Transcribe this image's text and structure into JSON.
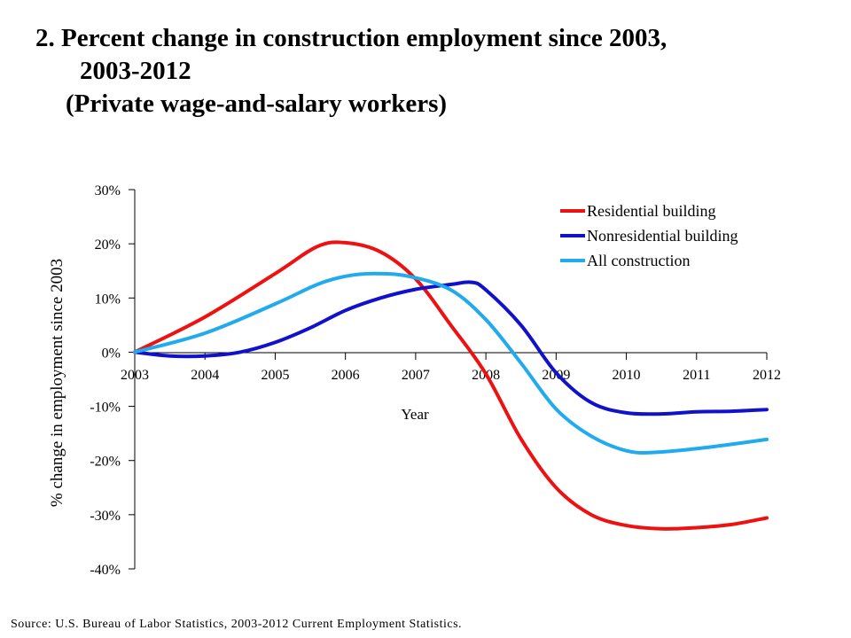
{
  "title": {
    "line1": "2. Percent change in construction employment since 2003,",
    "line2": "2003-2012",
    "subtitle": "(Private wage-and-salary workers)"
  },
  "source": "Source: U.S. Bureau of Labor Statistics, 2003-2012 Current Employment Statistics.",
  "chart_data": {
    "type": "line",
    "title": "2. Percent change in construction employment since 2003, 2003-2012 (Private wage-and-salary workers)",
    "xlabel": "Year",
    "ylabel": "% change in employment since 2003",
    "x": [
      2003,
      2004,
      2005,
      2006,
      2007,
      2008,
      2009,
      2010,
      2011,
      2012
    ],
    "x_ticks": [
      "2003",
      "2004",
      "2005",
      "2006",
      "2007",
      "2008",
      "2009",
      "2010",
      "2011",
      "2012"
    ],
    "y_ticks": [
      "30%",
      "20%",
      "10%",
      "0%",
      "-10%",
      "-20%",
      "-30%",
      "-40%"
    ],
    "y_tick_values": [
      30,
      20,
      10,
      0,
      -10,
      -20,
      -30,
      -40
    ],
    "ylim": [
      -40,
      30
    ],
    "xlim": [
      2003,
      2012
    ],
    "grid": false,
    "legend_position": "top-right",
    "series": [
      {
        "name": "Residential building",
        "color": "#ee1111",
        "points": [
          [
            2003,
            0
          ],
          [
            2004,
            6.5
          ],
          [
            2005,
            14.5
          ],
          [
            2005.6,
            19.5
          ],
          [
            2006,
            20.2
          ],
          [
            2006.5,
            18.5
          ],
          [
            2007,
            13.5
          ],
          [
            2007.5,
            5
          ],
          [
            2008,
            -4
          ],
          [
            2008.5,
            -16
          ],
          [
            2009,
            -25
          ],
          [
            2009.5,
            -30
          ],
          [
            2010,
            -32
          ],
          [
            2010.5,
            -32.6
          ],
          [
            2011,
            -32.4
          ],
          [
            2011.5,
            -31.8
          ],
          [
            2012,
            -30.6
          ]
        ]
      },
      {
        "name": "Nonresidential building",
        "color": "#1111cc",
        "points": [
          [
            2003,
            0
          ],
          [
            2003.5,
            -0.7
          ],
          [
            2004,
            -0.7
          ],
          [
            2004.5,
            0
          ],
          [
            2005,
            1.8
          ],
          [
            2005.5,
            4.5
          ],
          [
            2006,
            7.7
          ],
          [
            2006.5,
            10
          ],
          [
            2007,
            11.6
          ],
          [
            2007.5,
            12.5
          ],
          [
            2007.8,
            12.9
          ],
          [
            2008,
            11.5
          ],
          [
            2008.5,
            5
          ],
          [
            2009,
            -3.8
          ],
          [
            2009.5,
            -9.3
          ],
          [
            2010,
            -11.2
          ],
          [
            2010.5,
            -11.4
          ],
          [
            2011,
            -11
          ],
          [
            2011.5,
            -10.9
          ],
          [
            2012,
            -10.6
          ]
        ]
      },
      {
        "name": "All construction",
        "color": "#22aaee",
        "points": [
          [
            2003,
            0
          ],
          [
            2004,
            3.5
          ],
          [
            2005,
            8.9
          ],
          [
            2005.6,
            12.5
          ],
          [
            2006,
            14
          ],
          [
            2006.4,
            14.5
          ],
          [
            2006.9,
            14
          ],
          [
            2007.5,
            11.5
          ],
          [
            2008,
            6
          ],
          [
            2008.5,
            -2
          ],
          [
            2009,
            -10.5
          ],
          [
            2009.5,
            -15.5
          ],
          [
            2010,
            -18.2
          ],
          [
            2010.4,
            -18.5
          ],
          [
            2011,
            -17.8
          ],
          [
            2011.5,
            -17
          ],
          [
            2012,
            -16.1
          ]
        ]
      }
    ]
  }
}
